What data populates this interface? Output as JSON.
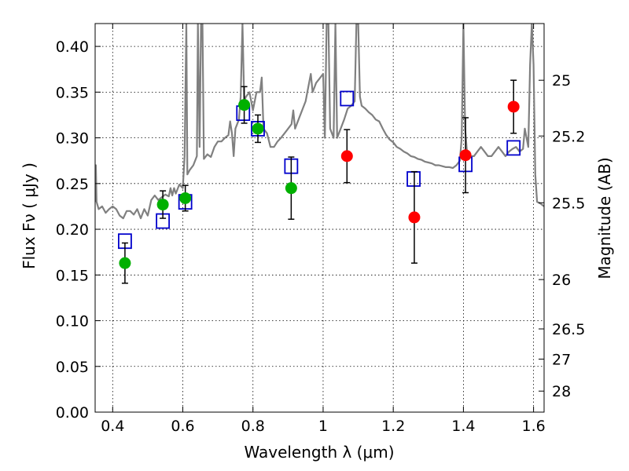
{
  "chart_data": {
    "type": "scatter",
    "xlabel": "Wavelength  λ (μm)",
    "ylabel_left": "Flux  Fν  ( μJy )",
    "ylabel_right": "Magnitude (AB)",
    "xlim": [
      0.35,
      1.63
    ],
    "ylim": [
      0.0,
      0.425
    ],
    "x_ticks": [
      0.4,
      0.6,
      0.8,
      1.0,
      1.2,
      1.4,
      1.6
    ],
    "x_tick_labels": [
      "0.4",
      "0.6",
      "0.8",
      "1",
      "1.2",
      "1.4",
      "1.6"
    ],
    "y_ticks": [
      0.0,
      0.05,
      0.1,
      0.15,
      0.2,
      0.25,
      0.3,
      0.35,
      0.4
    ],
    "y_tick_labels": [
      "0.00",
      "0.05",
      "0.10",
      "0.15",
      "0.20",
      "0.25",
      "0.30",
      "0.35",
      "0.40"
    ],
    "right_ticks": [
      {
        "label": "25",
        "flux": 0.363
      },
      {
        "label": "25.2",
        "flux": 0.302
      },
      {
        "label": "25.5",
        "flux": 0.229
      },
      {
        "label": "26",
        "flux": 0.145
      },
      {
        "label": "26.5",
        "flux": 0.091
      },
      {
        "label": "27",
        "flux": 0.058
      },
      {
        "label": "28",
        "flux": 0.023
      }
    ],
    "grid": true,
    "colors": {
      "spectrum": "#808080",
      "green": "#00b000",
      "red": "#ff0000",
      "model_box": "#0000cc",
      "errorbar": "#000000"
    },
    "series": [
      {
        "name": "green observations",
        "color": "green",
        "points": [
          {
            "x": 0.435,
            "y": 0.163,
            "yerr": 0.022
          },
          {
            "x": 0.543,
            "y": 0.227,
            "yerr": 0.015
          },
          {
            "x": 0.607,
            "y": 0.234,
            "yerr": 0.014
          },
          {
            "x": 0.775,
            "y": 0.336,
            "yerr": 0.02
          },
          {
            "x": 0.814,
            "y": 0.31,
            "yerr": 0.015
          },
          {
            "x": 0.909,
            "y": 0.245,
            "yerr": 0.034
          }
        ]
      },
      {
        "name": "red observations",
        "color": "red",
        "points": [
          {
            "x": 1.068,
            "y": 0.28,
            "yerr": 0.029
          },
          {
            "x": 1.26,
            "y": 0.213,
            "yerr": 0.05
          },
          {
            "x": 1.406,
            "y": 0.281,
            "yerr": 0.041
          },
          {
            "x": 1.543,
            "y": 0.334,
            "yerr": 0.029
          }
        ]
      },
      {
        "name": "model photometry",
        "color": "model_box",
        "points": [
          {
            "x": 0.435,
            "y": 0.187
          },
          {
            "x": 0.543,
            "y": 0.209
          },
          {
            "x": 0.607,
            "y": 0.23
          },
          {
            "x": 0.772,
            "y": 0.327
          },
          {
            "x": 0.814,
            "y": 0.31
          },
          {
            "x": 0.909,
            "y": 0.269
          },
          {
            "x": 1.068,
            "y": 0.343
          },
          {
            "x": 1.258,
            "y": 0.255
          },
          {
            "x": 1.406,
            "y": 0.271
          },
          {
            "x": 1.543,
            "y": 0.289
          }
        ]
      }
    ],
    "spectrum": [
      [
        0.35,
        0.23
      ],
      [
        0.352,
        0.27
      ],
      [
        0.354,
        0.23
      ],
      [
        0.36,
        0.222
      ],
      [
        0.37,
        0.225
      ],
      [
        0.38,
        0.218
      ],
      [
        0.39,
        0.222
      ],
      [
        0.4,
        0.225
      ],
      [
        0.41,
        0.222
      ],
      [
        0.42,
        0.215
      ],
      [
        0.43,
        0.212
      ],
      [
        0.44,
        0.22
      ],
      [
        0.45,
        0.22
      ],
      [
        0.46,
        0.216
      ],
      [
        0.47,
        0.222
      ],
      [
        0.48,
        0.212
      ],
      [
        0.49,
        0.222
      ],
      [
        0.5,
        0.215
      ],
      [
        0.51,
        0.232
      ],
      [
        0.52,
        0.237
      ],
      [
        0.53,
        0.232
      ],
      [
        0.54,
        0.235
      ],
      [
        0.55,
        0.238
      ],
      [
        0.56,
        0.236
      ],
      [
        0.565,
        0.245
      ],
      [
        0.57,
        0.237
      ],
      [
        0.575,
        0.245
      ],
      [
        0.58,
        0.239
      ],
      [
        0.59,
        0.249
      ],
      [
        0.6,
        0.245
      ],
      [
        0.605,
        0.28
      ],
      [
        0.61,
        0.425
      ],
      [
        0.613,
        0.26
      ],
      [
        0.62,
        0.265
      ],
      [
        0.63,
        0.27
      ],
      [
        0.64,
        0.28
      ],
      [
        0.643,
        0.425
      ],
      [
        0.648,
        0.29
      ],
      [
        0.652,
        0.425
      ],
      [
        0.656,
        0.425
      ],
      [
        0.66,
        0.277
      ],
      [
        0.67,
        0.282
      ],
      [
        0.68,
        0.279
      ],
      [
        0.69,
        0.29
      ],
      [
        0.7,
        0.296
      ],
      [
        0.71,
        0.296
      ],
      [
        0.72,
        0.3
      ],
      [
        0.73,
        0.303
      ],
      [
        0.735,
        0.318
      ],
      [
        0.74,
        0.305
      ],
      [
        0.745,
        0.28
      ],
      [
        0.75,
        0.31
      ],
      [
        0.76,
        0.32
      ],
      [
        0.765,
        0.345
      ],
      [
        0.77,
        0.425
      ],
      [
        0.775,
        0.34
      ],
      [
        0.78,
        0.345
      ],
      [
        0.79,
        0.35
      ],
      [
        0.8,
        0.33
      ],
      [
        0.81,
        0.35
      ],
      [
        0.82,
        0.35
      ],
      [
        0.825,
        0.366
      ],
      [
        0.83,
        0.31
      ],
      [
        0.84,
        0.305
      ],
      [
        0.85,
        0.29
      ],
      [
        0.86,
        0.29
      ],
      [
        0.87,
        0.296
      ],
      [
        0.88,
        0.3
      ],
      [
        0.89,
        0.305
      ],
      [
        0.9,
        0.31
      ],
      [
        0.91,
        0.315
      ],
      [
        0.915,
        0.33
      ],
      [
        0.92,
        0.31
      ],
      [
        0.93,
        0.32
      ],
      [
        0.94,
        0.33
      ],
      [
        0.95,
        0.34
      ],
      [
        0.96,
        0.36
      ],
      [
        0.965,
        0.37
      ],
      [
        0.97,
        0.35
      ],
      [
        0.98,
        0.36
      ],
      [
        0.99,
        0.365
      ],
      [
        1.0,
        0.37
      ],
      [
        1.005,
        0.3
      ],
      [
        1.01,
        0.425
      ],
      [
        1.015,
        0.425
      ],
      [
        1.02,
        0.31
      ],
      [
        1.03,
        0.3
      ],
      [
        1.035,
        0.425
      ],
      [
        1.04,
        0.3
      ],
      [
        1.05,
        0.31
      ],
      [
        1.06,
        0.32
      ],
      [
        1.07,
        0.332
      ],
      [
        1.08,
        0.335
      ],
      [
        1.09,
        0.34
      ],
      [
        1.095,
        0.425
      ],
      [
        1.1,
        0.425
      ],
      [
        1.105,
        0.345
      ],
      [
        1.11,
        0.335
      ],
      [
        1.12,
        0.332
      ],
      [
        1.13,
        0.328
      ],
      [
        1.14,
        0.325
      ],
      [
        1.15,
        0.32
      ],
      [
        1.16,
        0.318
      ],
      [
        1.17,
        0.31
      ],
      [
        1.18,
        0.303
      ],
      [
        1.19,
        0.298
      ],
      [
        1.2,
        0.295
      ],
      [
        1.21,
        0.29
      ],
      [
        1.22,
        0.288
      ],
      [
        1.23,
        0.285
      ],
      [
        1.24,
        0.283
      ],
      [
        1.25,
        0.28
      ],
      [
        1.26,
        0.279
      ],
      [
        1.27,
        0.277
      ],
      [
        1.28,
        0.276
      ],
      [
        1.29,
        0.274
      ],
      [
        1.3,
        0.273
      ],
      [
        1.31,
        0.272
      ],
      [
        1.32,
        0.27
      ],
      [
        1.33,
        0.27
      ],
      [
        1.34,
        0.269
      ],
      [
        1.35,
        0.268
      ],
      [
        1.36,
        0.268
      ],
      [
        1.37,
        0.267
      ],
      [
        1.38,
        0.27
      ],
      [
        1.39,
        0.275
      ],
      [
        1.395,
        0.3
      ],
      [
        1.4,
        0.425
      ],
      [
        1.405,
        0.31
      ],
      [
        1.41,
        0.285
      ],
      [
        1.42,
        0.28
      ],
      [
        1.43,
        0.28
      ],
      [
        1.44,
        0.285
      ],
      [
        1.45,
        0.29
      ],
      [
        1.46,
        0.285
      ],
      [
        1.47,
        0.28
      ],
      [
        1.48,
        0.28
      ],
      [
        1.49,
        0.285
      ],
      [
        1.5,
        0.29
      ],
      [
        1.51,
        0.285
      ],
      [
        1.52,
        0.28
      ],
      [
        1.53,
        0.285
      ],
      [
        1.54,
        0.288
      ],
      [
        1.55,
        0.29
      ],
      [
        1.56,
        0.285
      ],
      [
        1.57,
        0.288
      ],
      [
        1.575,
        0.31
      ],
      [
        1.58,
        0.3
      ],
      [
        1.585,
        0.29
      ],
      [
        1.59,
        0.38
      ],
      [
        1.595,
        0.425
      ],
      [
        1.6,
        0.38
      ],
      [
        1.605,
        0.26
      ],
      [
        1.61,
        0.23
      ],
      [
        1.62,
        0.228
      ],
      [
        1.63,
        0.225
      ]
    ]
  }
}
